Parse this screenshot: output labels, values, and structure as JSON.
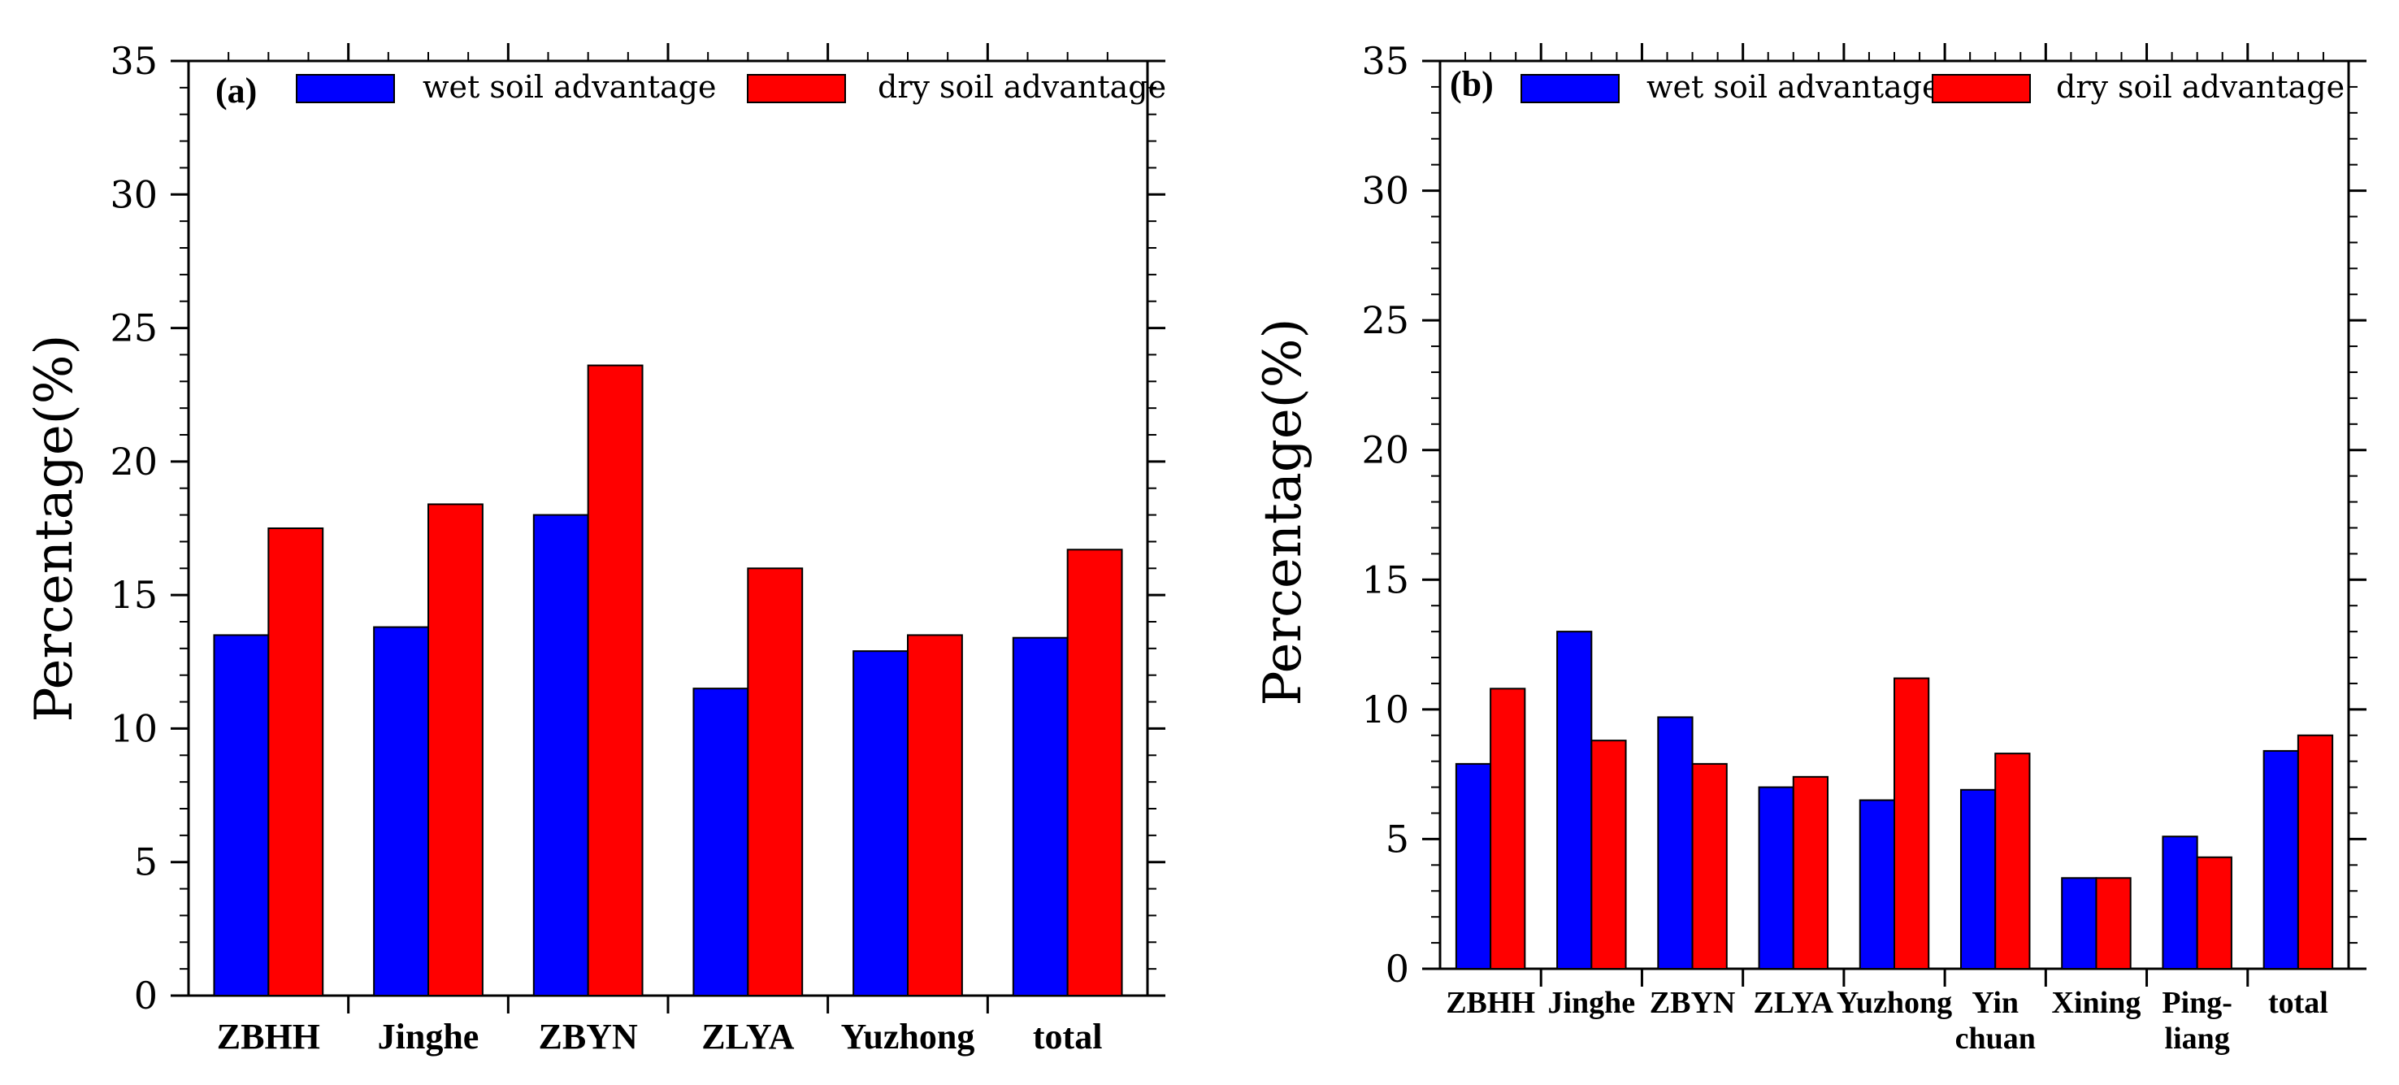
{
  "colors": {
    "wet": "#0000ff",
    "dry": "#ff0000"
  },
  "chart_data": [
    {
      "type": "bar",
      "panel_label": "(a)",
      "title": "",
      "xlabel": "",
      "ylabel": "Percentage(%)",
      "ylim": [
        0,
        35
      ],
      "yticks": [
        "0",
        "5",
        "10",
        "15",
        "20",
        "25",
        "30",
        "35"
      ],
      "legend_position": "top",
      "categories": [
        {
          "lines": [
            "ZBHH"
          ]
        },
        {
          "lines": [
            "Jinghe"
          ]
        },
        {
          "lines": [
            "ZBYN"
          ]
        },
        {
          "lines": [
            "ZLYA"
          ]
        },
        {
          "lines": [
            "Yuzhong"
          ]
        },
        {
          "lines": [
            "total"
          ]
        }
      ],
      "series": [
        {
          "name": "wet soil advantage",
          "color_key": "wet",
          "values": [
            13.5,
            13.8,
            18.0,
            11.5,
            12.9,
            13.4
          ]
        },
        {
          "name": "dry soil advantage",
          "color_key": "dry",
          "values": [
            17.5,
            18.4,
            23.6,
            16.0,
            13.5,
            16.7
          ]
        }
      ]
    },
    {
      "type": "bar",
      "panel_label": "(b)",
      "title": "",
      "xlabel": "",
      "ylabel": "Percentage(%)",
      "ylim": [
        0,
        35
      ],
      "yticks": [
        "0",
        "5",
        "10",
        "15",
        "20",
        "25",
        "30",
        "35"
      ],
      "legend_position": "top",
      "categories": [
        {
          "lines": [
            "ZBHH"
          ]
        },
        {
          "lines": [
            "Jinghe"
          ]
        },
        {
          "lines": [
            "ZBYN"
          ]
        },
        {
          "lines": [
            "ZLYA"
          ]
        },
        {
          "lines": [
            "Yuzhong"
          ]
        },
        {
          "lines": [
            "Yin",
            "chuan"
          ]
        },
        {
          "lines": [
            "Xining"
          ]
        },
        {
          "lines": [
            "Ping-",
            "liang"
          ]
        },
        {
          "lines": [
            "total"
          ]
        }
      ],
      "series": [
        {
          "name": "wet soil advantage",
          "color_key": "wet",
          "values": [
            7.9,
            13.0,
            9.7,
            7.0,
            6.5,
            6.9,
            3.5,
            5.1,
            8.4
          ]
        },
        {
          "name": "dry soil advantage",
          "color_key": "dry",
          "values": [
            10.8,
            8.8,
            7.9,
            7.4,
            11.2,
            8.3,
            3.5,
            4.3,
            9.0
          ]
        }
      ]
    }
  ]
}
